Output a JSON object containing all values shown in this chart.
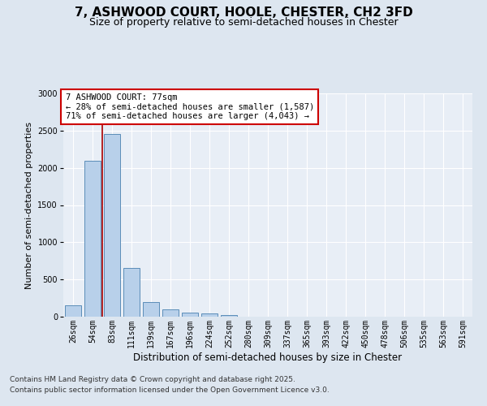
{
  "title1": "7, ASHWOOD COURT, HOOLE, CHESTER, CH2 3FD",
  "title2": "Size of property relative to semi-detached houses in Chester",
  "xlabel": "Distribution of semi-detached houses by size in Chester",
  "ylabel": "Number of semi-detached properties",
  "categories": [
    "26sqm",
    "54sqm",
    "83sqm",
    "111sqm",
    "139sqm",
    "167sqm",
    "196sqm",
    "224sqm",
    "252sqm",
    "280sqm",
    "309sqm",
    "337sqm",
    "365sqm",
    "393sqm",
    "422sqm",
    "450sqm",
    "478sqm",
    "506sqm",
    "535sqm",
    "563sqm",
    "591sqm"
  ],
  "values": [
    150,
    2100,
    2450,
    650,
    200,
    100,
    60,
    40,
    20,
    5,
    2,
    0,
    0,
    0,
    0,
    0,
    0,
    0,
    0,
    0,
    0
  ],
  "bar_color": "#b8d0ea",
  "bar_edge_color": "#5b8db8",
  "vline_x_idx": 1.5,
  "vline_color": "#aa0000",
  "ylim": [
    0,
    3000
  ],
  "yticks": [
    0,
    500,
    1000,
    1500,
    2000,
    2500,
    3000
  ],
  "annotation_title": "7 ASHWOOD COURT: 77sqm",
  "annotation_line1": "← 28% of semi-detached houses are smaller (1,587)",
  "annotation_line2": "71% of semi-detached houses are larger (4,043) →",
  "annotation_box_facecolor": "#ffffff",
  "annotation_box_edgecolor": "#cc0000",
  "footer1": "Contains HM Land Registry data © Crown copyright and database right 2025.",
  "footer2": "Contains public sector information licensed under the Open Government Licence v3.0.",
  "bg_color": "#dde6f0",
  "plot_bg_color": "#e8eef6",
  "title1_fontsize": 11,
  "title2_fontsize": 9,
  "xlabel_fontsize": 8.5,
  "ylabel_fontsize": 8,
  "tick_fontsize": 7,
  "annot_fontsize": 7.5,
  "footer_fontsize": 6.5
}
